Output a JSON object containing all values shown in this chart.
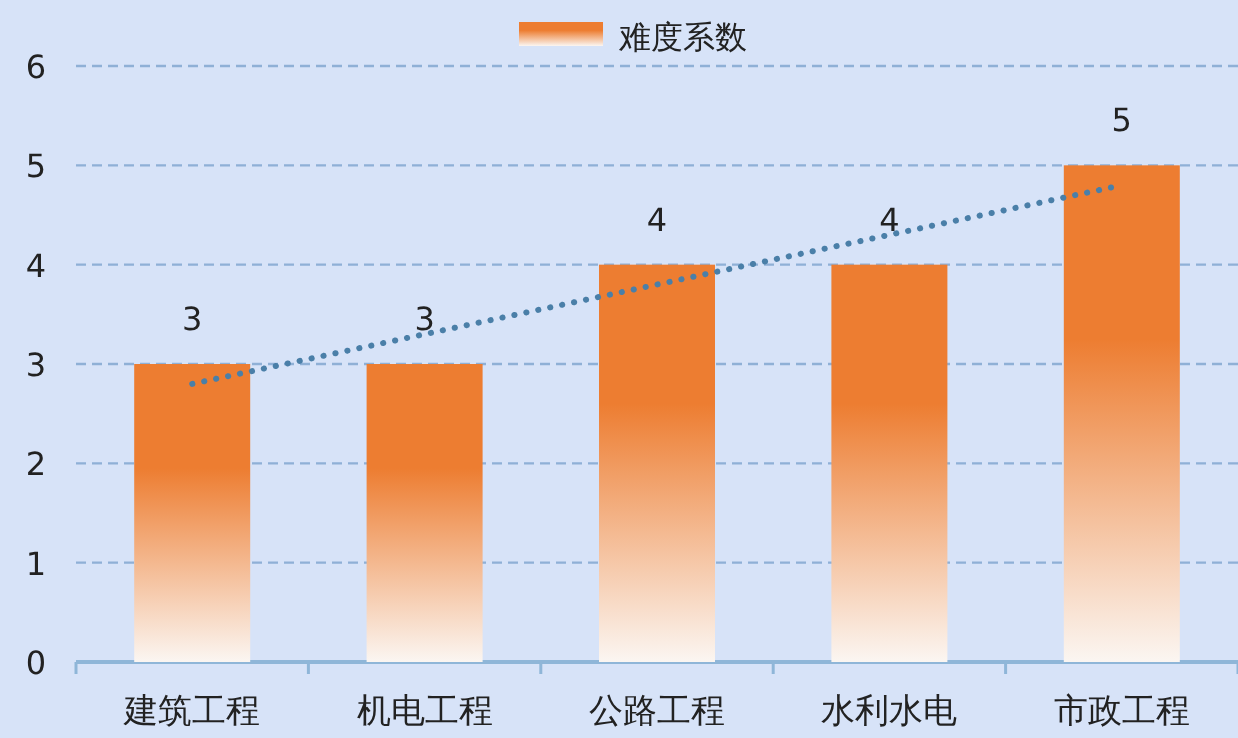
{
  "chart_data": {
    "type": "bar",
    "categories": [
      "建筑工程",
      "机电工程",
      "公路工程",
      "水利水电",
      "市政工程"
    ],
    "series": [
      {
        "name": "难度系数",
        "color": "#ed7d31",
        "values": [
          3,
          3,
          4,
          4,
          5
        ],
        "value_labels": [
          "3",
          "3",
          "4",
          "4",
          "5"
        ]
      },
      {
        "type": "line",
        "x": [
          "建筑工程",
          "市政工程"
        ],
        "values": [
          2.8,
          4.8
        ],
        "color": "#4a7fa8",
        "line_style": "dotted"
      }
    ],
    "ylim": [
      0,
      6
    ],
    "yticks": [
      0,
      1,
      2,
      3,
      4,
      5,
      6
    ],
    "grid": "y",
    "legend": "top"
  }
}
